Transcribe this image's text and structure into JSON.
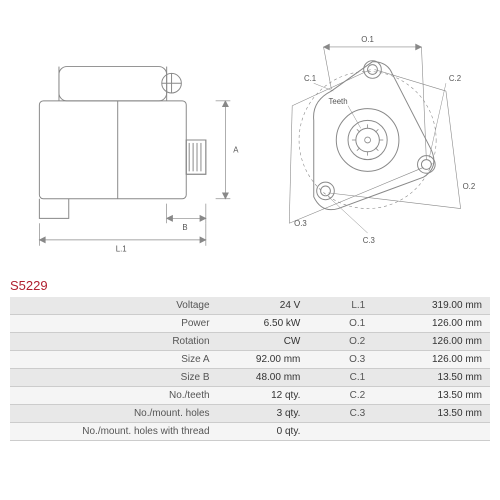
{
  "partNumber": "S5229",
  "diagrams": {
    "side": {
      "labels": {
        "L1": "L.1",
        "A": "A",
        "B": "B"
      }
    },
    "front": {
      "labels": {
        "O1": "O.1",
        "O2": "O.2",
        "O3": "O.3",
        "C1": "C.1",
        "C2": "C.2",
        "C3": "C.3",
        "teeth": "Teeth"
      }
    }
  },
  "specs": [
    {
      "label": "Voltage",
      "value": "24 V",
      "label2": "L.1",
      "value2": "319.00 mm"
    },
    {
      "label": "Power",
      "value": "6.50 kW",
      "label2": "O.1",
      "value2": "126.00 mm"
    },
    {
      "label": "Rotation",
      "value": "CW",
      "label2": "O.2",
      "value2": "126.00 mm"
    },
    {
      "label": "Size A",
      "value": "92.00 mm",
      "label2": "O.3",
      "value2": "126.00 mm"
    },
    {
      "label": "Size B",
      "value": "48.00 mm",
      "label2": "C.1",
      "value2": "13.50 mm"
    },
    {
      "label": "No./teeth",
      "value": "12 qty.",
      "label2": "C.2",
      "value2": "13.50 mm"
    },
    {
      "label": "No./mount. holes",
      "value": "3 qty.",
      "label2": "C.3",
      "value2": "13.50 mm"
    },
    {
      "label": "No./mount. holes with thread",
      "value": "0 qty.",
      "label2": "",
      "value2": ""
    }
  ],
  "colors": {
    "line": "#888888",
    "accent": "#b02030",
    "rowOdd": "#e8e8e8",
    "rowEven": "#f5f5f5"
  }
}
